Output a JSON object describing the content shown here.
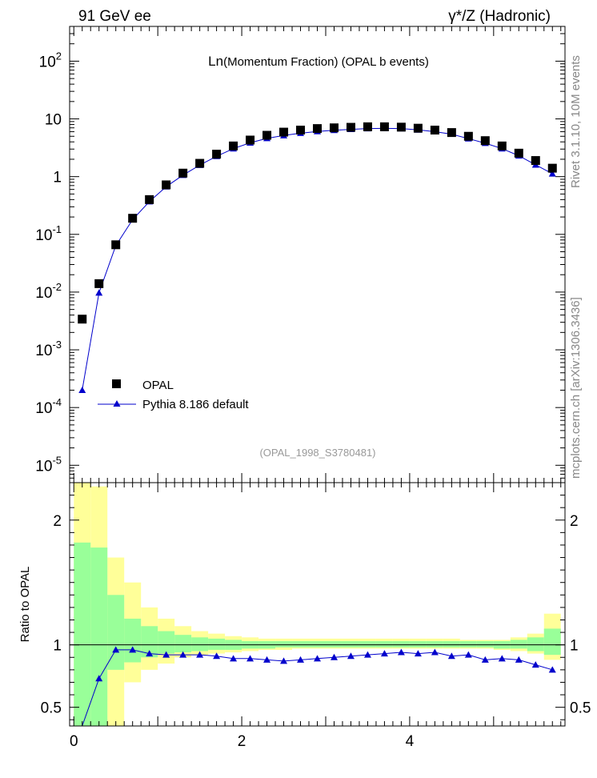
{
  "header": {
    "left": "91 GeV ee",
    "right": "γ*/Z (Hadronic)"
  },
  "side_labels": {
    "rivet": "Rivet 3.1.10,  10M events",
    "mcplots": "mcplots.cern.ch [arXiv:1306.3436]"
  },
  "chart_data": [
    {
      "type": "scatter",
      "title_prefix": "Ln",
      "title": "(Momentum Fraction) (OPAL b events)",
      "analysis_id": "(OPAL_1998_S3780481)",
      "y_scale": "log",
      "ylim": [
        5e-06,
        400
      ],
      "xlim": [
        -0.05,
        5.85
      ],
      "legend_position": "bottom-left",
      "y_tick_labels": [
        "10^-5",
        "10^-4",
        "10^-3",
        "10^-2",
        "10^-1",
        "1",
        "10",
        "10^2"
      ],
      "x": [
        0.1,
        0.3,
        0.5,
        0.7,
        0.9,
        1.1,
        1.3,
        1.5,
        1.7,
        1.9,
        2.1,
        2.3,
        2.5,
        2.7,
        2.9,
        3.1,
        3.3,
        3.5,
        3.7,
        3.9,
        4.1,
        4.3,
        4.5,
        4.7,
        4.9,
        5.1,
        5.3,
        5.5,
        5.7
      ],
      "series": [
        {
          "name": "OPAL",
          "marker": "square",
          "color": "#000000",
          "values": [
            0.0034,
            0.014,
            0.066,
            0.19,
            0.4,
            0.72,
            1.15,
            1.7,
            2.45,
            3.4,
            4.3,
            5.2,
            5.9,
            6.4,
            6.8,
            7.0,
            7.15,
            7.3,
            7.3,
            7.2,
            6.9,
            6.4,
            5.8,
            5.0,
            4.2,
            3.4,
            2.55,
            1.9,
            1.4
          ]
        },
        {
          "name": "Pythia 8.186 default",
          "marker": "triangle",
          "color": "#0000cc",
          "values": [
            0.0002,
            0.0097,
            0.064,
            0.18,
            0.37,
            0.67,
            1.06,
            1.58,
            2.25,
            3.05,
            3.85,
            4.6,
            5.15,
            5.65,
            6.05,
            6.35,
            6.6,
            6.8,
            6.85,
            6.8,
            6.45,
            6.0,
            5.45,
            4.55,
            3.8,
            3.05,
            2.3,
            1.6,
            1.12
          ]
        }
      ]
    },
    {
      "type": "line",
      "ylabel": "Ratio to OPAL",
      "ylim": [
        0.35,
        2.3
      ],
      "xlim": [
        -0.05,
        5.85
      ],
      "x_tick_labels": [
        "0",
        "2",
        "4"
      ],
      "y_tick_labels": [
        "0.5",
        "1",
        "2"
      ],
      "x": [
        0.1,
        0.3,
        0.5,
        0.7,
        0.9,
        1.1,
        1.3,
        1.5,
        1.7,
        1.9,
        2.1,
        2.3,
        2.5,
        2.7,
        2.9,
        3.1,
        3.3,
        3.5,
        3.7,
        3.9,
        4.1,
        4.3,
        4.5,
        4.7,
        4.9,
        5.1,
        5.3,
        5.5,
        5.7
      ],
      "bin_edges": [
        0.0,
        0.2,
        0.4,
        0.6,
        0.8,
        1.0,
        1.2,
        1.4,
        1.6,
        1.8,
        2.0,
        2.2,
        2.4,
        2.6,
        2.8,
        3.0,
        3.2,
        3.4,
        3.6,
        3.8,
        4.0,
        4.2,
        4.4,
        4.6,
        4.8,
        5.0,
        5.2,
        5.4,
        5.6,
        5.8
      ],
      "band_colors": {
        "inner": "#99ff99",
        "outer": "#ffff99"
      },
      "inner_band": [
        [
          0.2,
          1.82
        ],
        [
          0.2,
          1.78
        ],
        [
          0.8,
          1.4
        ],
        [
          0.86,
          1.21
        ],
        [
          0.9,
          1.15
        ],
        [
          0.93,
          1.11
        ],
        [
          0.94,
          1.08
        ],
        [
          0.95,
          1.06
        ],
        [
          0.96,
          1.05
        ],
        [
          0.96,
          1.04
        ],
        [
          0.97,
          1.03
        ],
        [
          0.97,
          1.03
        ],
        [
          0.98,
          1.03
        ],
        [
          0.98,
          1.03
        ],
        [
          0.98,
          1.03
        ],
        [
          0.98,
          1.03
        ],
        [
          0.98,
          1.03
        ],
        [
          0.98,
          1.03
        ],
        [
          0.98,
          1.03
        ],
        [
          0.98,
          1.03
        ],
        [
          0.98,
          1.03
        ],
        [
          0.98,
          1.03
        ],
        [
          0.98,
          1.03
        ],
        [
          0.98,
          1.03
        ],
        [
          0.98,
          1.03
        ],
        [
          0.97,
          1.03
        ],
        [
          0.97,
          1.04
        ],
        [
          0.95,
          1.06
        ],
        [
          0.92,
          1.13
        ]
      ],
      "outer_band": [
        [
          0.2,
          2.3
        ],
        [
          0.2,
          2.27
        ],
        [
          0.2,
          1.7
        ],
        [
          0.7,
          1.5
        ],
        [
          0.8,
          1.3
        ],
        [
          0.85,
          1.21
        ],
        [
          0.9,
          1.15
        ],
        [
          0.92,
          1.11
        ],
        [
          0.93,
          1.09
        ],
        [
          0.94,
          1.07
        ],
        [
          0.95,
          1.06
        ],
        [
          0.96,
          1.05
        ],
        [
          0.96,
          1.05
        ],
        [
          0.97,
          1.05
        ],
        [
          0.97,
          1.05
        ],
        [
          0.97,
          1.05
        ],
        [
          0.97,
          1.05
        ],
        [
          0.97,
          1.05
        ],
        [
          0.97,
          1.05
        ],
        [
          0.97,
          1.05
        ],
        [
          0.97,
          1.05
        ],
        [
          0.97,
          1.05
        ],
        [
          0.97,
          1.05
        ],
        [
          0.97,
          1.04
        ],
        [
          0.97,
          1.04
        ],
        [
          0.96,
          1.04
        ],
        [
          0.95,
          1.06
        ],
        [
          0.93,
          1.09
        ],
        [
          0.88,
          1.25
        ]
      ],
      "series": [
        {
          "name": "Pythia 8.186 default",
          "color": "#0000cc",
          "values": [
            0.06,
            0.73,
            0.96,
            0.96,
            0.93,
            0.92,
            0.92,
            0.92,
            0.91,
            0.89,
            0.89,
            0.88,
            0.87,
            0.88,
            0.89,
            0.9,
            0.91,
            0.92,
            0.93,
            0.94,
            0.93,
            0.94,
            0.91,
            0.92,
            0.88,
            0.89,
            0.88,
            0.84,
            0.8
          ]
        }
      ]
    }
  ]
}
